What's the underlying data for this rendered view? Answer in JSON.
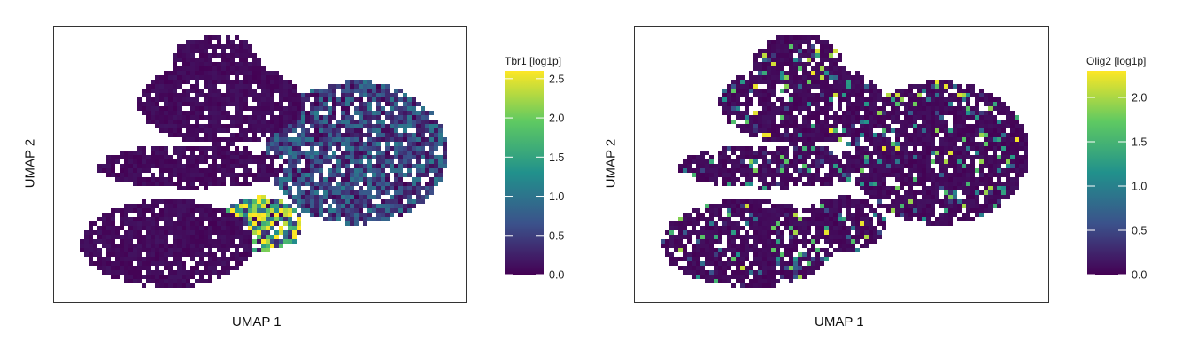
{
  "chart_data": [
    {
      "type": "scatter",
      "xlabel": "UMAP 1",
      "ylabel": "UMAP 2",
      "legend": {
        "title": "Tbr1 [log1p]",
        "placement": "right",
        "range": [
          0,
          2.6
        ],
        "ticks": [
          0.0,
          0.5,
          1.0,
          1.5,
          2.0,
          2.5
        ],
        "tick_labels": [
          "0.0",
          "0.5",
          "1.0",
          "1.5",
          "2.0",
          "2.5"
        ],
        "colormap": [
          "#440154",
          "#3b528b",
          "#21918c",
          "#5ec962",
          "#fde725"
        ]
      },
      "grid": false,
      "hot_regions": [
        {
          "cluster": "right-lobe",
          "level": 0.6
        },
        {
          "cluster": "lower-middle",
          "level": 1.8
        }
      ]
    },
    {
      "type": "scatter",
      "xlabel": "UMAP 1",
      "ylabel": "UMAP 2",
      "legend": {
        "title": "Olig2 [log1p]",
        "placement": "right",
        "range": [
          0,
          2.3
        ],
        "ticks": [
          0.0,
          0.5,
          1.0,
          1.5,
          2.0
        ],
        "tick_labels": [
          "0.0",
          "0.5",
          "1.0",
          "1.5",
          "2.0"
        ],
        "colormap": [
          "#440154",
          "#3b528b",
          "#21918c",
          "#5ec962",
          "#fde725"
        ]
      },
      "grid": false,
      "hot_regions": [
        {
          "cluster": "scattered",
          "level": 0.15
        }
      ]
    }
  ]
}
